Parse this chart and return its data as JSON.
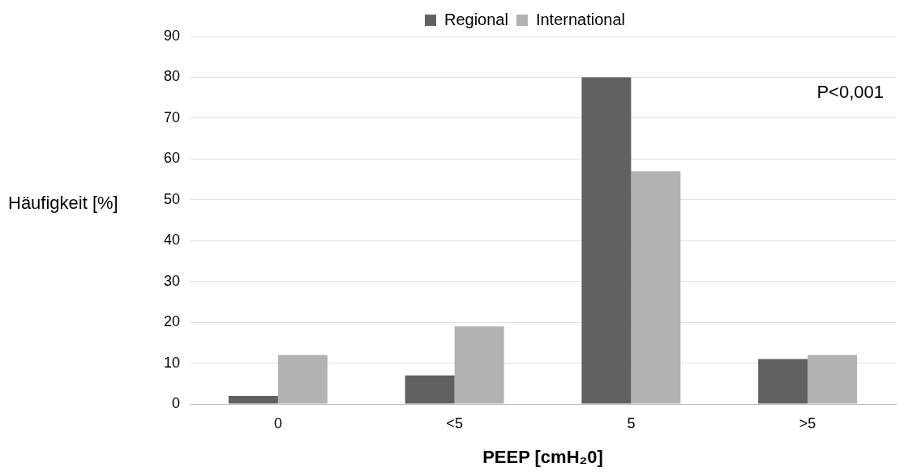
{
  "chart_data": {
    "type": "bar",
    "xlabel": "PEEP [cmH₂0]",
    "ylabel": "Häufigkeit [%]",
    "categories": [
      "0",
      "<5",
      "5",
      ">5"
    ],
    "series": [
      {
        "name": "Regional",
        "color": "#616161",
        "values": [
          2,
          7,
          80,
          11
        ]
      },
      {
        "name": "International",
        "color": "#b2b2b2",
        "values": [
          12,
          19,
          57,
          12
        ]
      }
    ],
    "ylim": [
      0,
      90
    ],
    "yticks": [
      0,
      10,
      20,
      30,
      40,
      50,
      60,
      70,
      80,
      90
    ],
    "grid": "y",
    "legend": "top",
    "annotations": [
      "P<0,001"
    ]
  }
}
